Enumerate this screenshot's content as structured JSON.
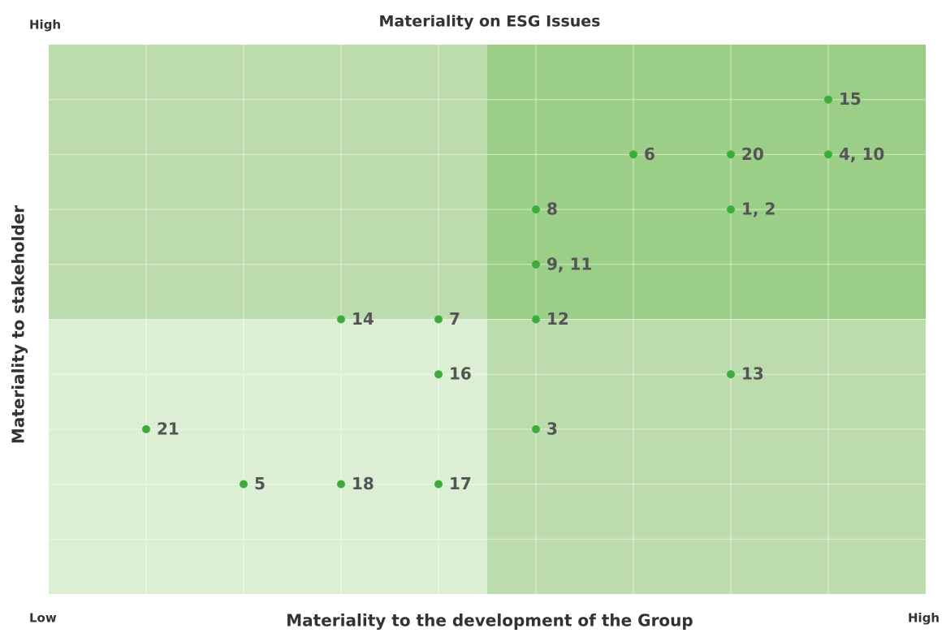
{
  "chart_data": {
    "type": "scatter",
    "title": "Materiality on ESG Issues",
    "x_label": "Materiality to the development of the Group",
    "y_label": "Materiality to stakeholder",
    "x_low_label": "Low",
    "x_high_label": "High",
    "y_high_label": "High",
    "xlim": [
      0,
      9
    ],
    "ylim": [
      0,
      10
    ],
    "xgrid": [
      1,
      2,
      3,
      4,
      5,
      6,
      7,
      8
    ],
    "ygrid": [
      1,
      2,
      3,
      4,
      5,
      6,
      7,
      8,
      9
    ],
    "quadrant_split": [
      4.5,
      5
    ],
    "quadrant_colors": {
      "top_left": "#bcdcad",
      "top_right": "#9bcf88",
      "bottom_left": "#dcefd4",
      "bottom_right": "#bcdcad"
    },
    "color": "#3cad3a",
    "labels": [
      "21",
      "5",
      "14",
      "18",
      "7",
      "16",
      "17",
      "8",
      "9, 11",
      "12",
      "3",
      "6",
      "20",
      "1, 2",
      "13",
      "15",
      "4, 10"
    ],
    "x": [
      1,
      2,
      3,
      3,
      4,
      4,
      4,
      5,
      5,
      5,
      5,
      6,
      7,
      7,
      7,
      8,
      8
    ],
    "values": [
      3,
      2,
      5,
      2,
      5,
      4,
      2,
      7,
      6,
      5,
      3,
      8,
      8,
      7,
      4,
      9,
      8
    ]
  }
}
